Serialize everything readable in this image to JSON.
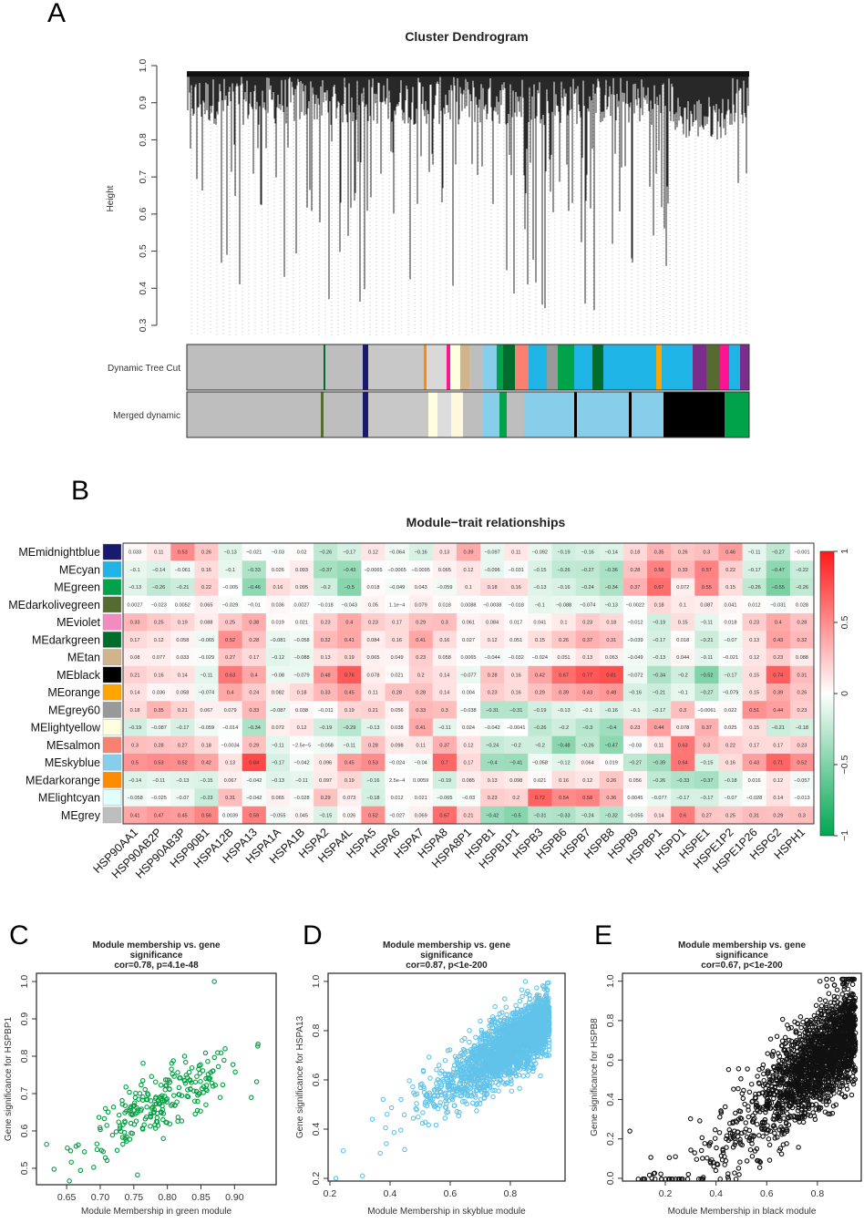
{
  "panels": {
    "a": "A",
    "b": "B",
    "c": "C",
    "d": "D",
    "e": "E"
  },
  "chart_data": [
    {
      "type": "dendrogram",
      "title": "Cluster Dendrogram",
      "ylabel": "Height",
      "ylim": [
        0.3,
        1.0
      ],
      "yticks": [
        "1.0",
        "0.9",
        "0.8",
        "0.7",
        "0.6",
        "0.5",
        "0.4",
        "0.3"
      ],
      "color_rows": [
        "Dynamic Tree Cut",
        "Merged dynamic"
      ]
    },
    {
      "type": "heatmap",
      "title": "Module−trait relationships",
      "rows": [
        "MEmidnightblue",
        "MEcyan",
        "MEgreen",
        "MEdarkolivegreen",
        "MEviolet",
        "MEdarkgreen",
        "MEtan",
        "MEblack",
        "MEorange",
        "MEgrey60",
        "MElightyellow",
        "MEsalmon",
        "MEskyblue",
        "MEdarkorange",
        "MElightcyan",
        "MEgrey"
      ],
      "row_colors": [
        "#191970",
        "#1EB4E6",
        "#00A34A",
        "#556B2F",
        "#F28BC0",
        "#006D2C",
        "#D2B48C",
        "#000000",
        "#FFA500",
        "#999999",
        "#FFFFE0",
        "#FA8072",
        "#87CEEB",
        "#FF8C00",
        "#E0FFFF",
        "#BEBEBE"
      ],
      "columns": [
        "HSP90AA1",
        "HSP90AB2P",
        "HSP90AB3P",
        "HSP90B1",
        "HSPA12B",
        "HSPA13",
        "HSPA1A",
        "HSPA1B",
        "HSPA2",
        "HSPA4L",
        "HSPA5",
        "HSPA6",
        "HSPA7",
        "HSPA8",
        "HSPA8P1",
        "HSPB1",
        "HSPB1P1",
        "HSPB3",
        "HSPB6",
        "HSPB7",
        "HSPB8",
        "HSPB9",
        "HSPBP1",
        "HSPD1",
        "HSPE1",
        "HSPE1P2",
        "HSPE1P26",
        "HSPG2",
        "HSPH1"
      ],
      "values": [
        [
          0.033,
          0.11,
          0.53,
          0.26,
          -0.13,
          -0.021,
          -0.03,
          0.02,
          -0.26,
          -0.17,
          0.12,
          -0.064,
          -0.16,
          0.13,
          0.39,
          -0.097,
          0.11,
          -0.092,
          -0.19,
          -0.16,
          -0.14,
          0.18,
          0.35,
          0.26,
          0.3,
          0.46,
          -0.11,
          -0.27,
          -0.001
        ],
        [
          -0.1,
          -0.14,
          -0.061,
          0.16,
          -0.1,
          -0.33,
          0.026,
          0.093,
          -0.37,
          -0.43,
          -0.0065,
          -0.0065,
          -0.0095,
          0.065,
          0.12,
          -0.096,
          -0.031,
          -0.15,
          -0.26,
          -0.27,
          -0.36,
          0.28,
          0.58,
          0.33,
          0.57,
          0.22,
          -0.17,
          -0.47,
          -0.22
        ],
        [
          -0.13,
          -0.26,
          -0.21,
          0.22,
          -0.005,
          -0.46,
          0.16,
          0.095,
          -0.2,
          -0.5,
          0.018,
          -0.049,
          0.043,
          -0.059,
          0.1,
          0.18,
          0.16,
          -0.13,
          -0.16,
          -0.24,
          -0.34,
          0.37,
          0.67,
          0.072,
          0.55,
          0.15,
          -0.26,
          -0.55,
          -0.26
        ],
        [
          0.0027,
          -0.023,
          0.0052,
          0.065,
          -0.029,
          -0.01,
          0.036,
          0.0027,
          -0.018,
          -0.043,
          0.05,
          0.00011,
          0.079,
          0.018,
          0.0088,
          -0.0038,
          -0.018,
          -0.1,
          -0.088,
          -0.074,
          -0.13,
          -0.0022,
          0.18,
          0.1,
          0.087,
          0.041,
          0.012,
          -0.031,
          0.028
        ],
        [
          0.33,
          0.25,
          0.19,
          0.088,
          0.25,
          0.38,
          0.019,
          0.021,
          0.23,
          0.4,
          0.23,
          0.17,
          0.29,
          0.3,
          0.061,
          0.084,
          0.017,
          0.041,
          0.1,
          0.23,
          0.18,
          -0.012,
          -0.19,
          0.15,
          -0.11,
          0.018,
          0.23,
          0.4,
          0.28
        ],
        [
          0.17,
          0.12,
          0.058,
          -0.065,
          0.52,
          0.28,
          -0.081,
          -0.058,
          0.32,
          0.41,
          0.084,
          0.16,
          0.41,
          0.16,
          0.027,
          0.12,
          0.051,
          0.15,
          0.26,
          0.37,
          0.31,
          -0.039,
          -0.17,
          0.018,
          -0.21,
          -0.07,
          0.13,
          0.43,
          0.32
        ],
        [
          0.08,
          0.077,
          0.033,
          -0.029,
          0.27,
          0.17,
          -0.12,
          -0.088,
          0.13,
          0.19,
          0.065,
          0.049,
          0.23,
          0.058,
          0.0065,
          -0.044,
          -0.032,
          -0.024,
          0.051,
          0.13,
          0.063,
          -0.049,
          -0.13,
          0.044,
          -0.11,
          -0.021,
          0.12,
          0.23,
          0.088
        ],
        [
          0.21,
          0.16,
          0.14,
          -0.11,
          0.63,
          0.4,
          -0.08,
          -0.079,
          0.48,
          0.76,
          0.078,
          0.021,
          0.2,
          0.14,
          -0.077,
          0.28,
          0.16,
          0.42,
          0.67,
          0.77,
          0.81,
          -0.072,
          -0.34,
          -0.2,
          -0.52,
          -0.17,
          0.15,
          0.74,
          0.31
        ],
        [
          0.14,
          0.036,
          0.058,
          -0.074,
          0.4,
          0.24,
          0.082,
          0.18,
          0.33,
          0.45,
          0.11,
          0.28,
          0.28,
          0.14,
          0.004,
          0.23,
          0.16,
          0.29,
          0.39,
          0.43,
          0.48,
          -0.16,
          -0.21,
          -0.1,
          -0.27,
          -0.079,
          0.15,
          0.39,
          0.26
        ],
        [
          0.18,
          0.35,
          0.21,
          0.067,
          0.079,
          0.33,
          -0.087,
          0.038,
          -0.011,
          0.19,
          0.21,
          0.056,
          0.33,
          0.3,
          -0.038,
          -0.31,
          -0.31,
          -0.19,
          -0.13,
          -0.1,
          -0.16,
          -0.1,
          -0.17,
          0.3,
          -0.0061,
          0.022,
          0.51,
          0.44,
          0.23
        ],
        [
          -0.19,
          -0.087,
          -0.17,
          -0.059,
          -0.014,
          -0.34,
          0.072,
          0.12,
          -0.19,
          -0.29,
          -0.13,
          0.038,
          0.41,
          -0.11,
          0.024,
          -0.042,
          -0.0041,
          -0.26,
          -0.2,
          -0.3,
          -0.4,
          0.23,
          0.44,
          0.078,
          0.37,
          0.025,
          0.15,
          -0.21,
          -0.18
        ],
        [
          0.3,
          0.28,
          0.27,
          0.18,
          -0.0034,
          0.29,
          -0.11,
          -2.5e-05,
          -0.058,
          -0.11,
          0.28,
          0.098,
          0.11,
          0.37,
          0.12,
          -0.24,
          -0.2,
          -0.2,
          -0.48,
          -0.26,
          -0.47,
          -0.03,
          0.11,
          0.63,
          0.3,
          0.22,
          0.17,
          0.17,
          0.23
        ],
        [
          0.5,
          0.53,
          0.52,
          0.42,
          0.13,
          0.84,
          -0.17,
          -0.042,
          0.096,
          0.45,
          0.53,
          -0.024,
          -0.04,
          0.7,
          0.17,
          -0.4,
          -0.41,
          -0.058,
          -0.12,
          0.064,
          0.019,
          -0.27,
          -0.39,
          0.64,
          -0.15,
          0.16,
          0.43,
          0.71,
          0.52
        ],
        [
          -0.14,
          -0.11,
          -0.13,
          -0.15,
          0.067,
          -0.042,
          -0.13,
          -0.11,
          0.097,
          0.19,
          -0.16,
          0.00025,
          0.0059,
          -0.19,
          0.085,
          0.13,
          0.098,
          0.021,
          0.16,
          0.12,
          0.26,
          0.056,
          -0.26,
          -0.33,
          -0.37,
          -0.18,
          0.016,
          0.12,
          -0.057
        ],
        [
          -0.058,
          -0.025,
          -0.07,
          -0.23,
          0.31,
          -0.042,
          0.065,
          -0.028,
          0.29,
          0.073,
          -0.18,
          0.012,
          0.021,
          -0.065,
          -0.03,
          0.23,
          0.2,
          0.72,
          0.54,
          0.58,
          0.36,
          0.0045,
          -0.077,
          -0.17,
          -0.17,
          -0.07,
          -0.028,
          0.14,
          -0.013
        ],
        [
          0.41,
          0.47,
          0.45,
          0.56,
          0.0039,
          0.59,
          -0.055,
          0.045,
          -0.15,
          0.026,
          0.52,
          -0.027,
          0.069,
          0.67,
          0.21,
          -0.42,
          -0.5,
          -0.31,
          -0.33,
          -0.24,
          -0.32,
          -0.055,
          0.14,
          0.6,
          0.27,
          0.25,
          0.31,
          0.29,
          0.3
        ]
      ],
      "scale": [
        -1,
        1
      ],
      "legend_ticks": [
        "1",
        "0.5",
        "0",
        "-0.5",
        "-1"
      ],
      "colors": {
        "neg": "#00A651",
        "mid": "#FFFFFF",
        "pos": "#FF1A1A"
      }
    },
    {
      "type": "scatter",
      "title_lines": [
        "Module membership vs. gene",
        "significance",
        "cor=0.78, p=4.1e-48"
      ],
      "xlabel": "Module Membership in green module",
      "ylabel": "Gene significance for HSPBP1",
      "xticks": [
        "0.65",
        "0.70",
        "0.75",
        "0.80",
        "0.85",
        "0.90"
      ],
      "yticks": [
        "0.5",
        "0.6",
        "0.7",
        "0.8",
        "0.9",
        "1.0"
      ],
      "xlim": [
        0.605,
        0.962
      ],
      "ylim": [
        0.456,
        1.022
      ],
      "color": "#00A040",
      "n": 240,
      "cor": 0.78
    },
    {
      "type": "scatter",
      "title_lines": [
        "Module membership vs. gene",
        "significance",
        "cor=0.87, p<1e-200"
      ],
      "xlabel": "Module Membership in skyblue module",
      "ylabel": "Gene significance for HSPA13",
      "xticks": [
        "0.2",
        "0.4",
        "0.6",
        "0.8"
      ],
      "yticks": [
        "0.2",
        "0.4",
        "0.6",
        "0.8",
        "1.0"
      ],
      "xlim": [
        0.194,
        0.982
      ],
      "ylim": [
        0.189,
        1.033
      ],
      "color": "#62C3EA",
      "n": 2400,
      "cor": 0.87
    },
    {
      "type": "scatter",
      "title_lines": [
        "Module membership vs. gene",
        "significance",
        "cor=0.67, p<1e-200"
      ],
      "xlabel": "Module Membership in black module",
      "ylabel": "Gene significance for HSPB8",
      "xticks": [
        "0.2",
        "0.4",
        "0.6",
        "0.8"
      ],
      "yticks": [
        "0.0",
        "0.2",
        "0.4",
        "0.6",
        "0.8",
        "1.0"
      ],
      "xlim": [
        0.031,
        0.973
      ],
      "ylim": [
        -0.014,
        1.04
      ],
      "color": "#111111",
      "n": 2000,
      "cor": 0.67
    }
  ]
}
